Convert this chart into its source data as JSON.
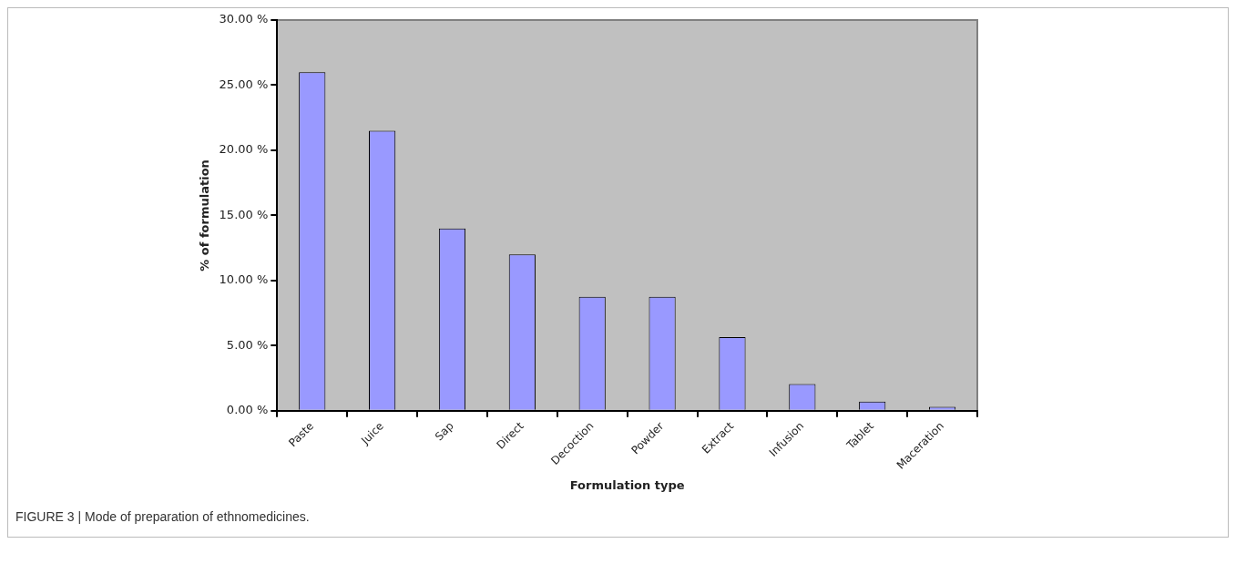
{
  "chart_data": {
    "type": "bar",
    "categories": [
      "Paste",
      "Juice",
      "Sap",
      "Direct",
      "Decoction",
      "Powder",
      "Extract",
      "Infusion",
      "Tablet",
      "Maceration"
    ],
    "values": [
      26.0,
      21.5,
      14.0,
      12.0,
      8.75,
      8.75,
      5.65,
      2.05,
      0.7,
      0.3
    ],
    "color": "#9999ff",
    "xlabel": "Formulation type",
    "ylabel": "% of formulation",
    "ylim": [
      0,
      30
    ],
    "yticks": [
      {
        "value": 0,
        "label": "0.00 %"
      },
      {
        "value": 5,
        "label": "5.00 %"
      },
      {
        "value": 10,
        "label": "10.00 %"
      },
      {
        "value": 15,
        "label": "15.00 %"
      },
      {
        "value": 20,
        "label": "20.00 %"
      },
      {
        "value": 25,
        "label": "25.00 %"
      },
      {
        "value": 30,
        "label": "30.00 %"
      }
    ],
    "grid": false,
    "legend": false,
    "annotations": [
      "FIGURE 3 | Mode of preparation of ethnomedicines."
    ]
  }
}
